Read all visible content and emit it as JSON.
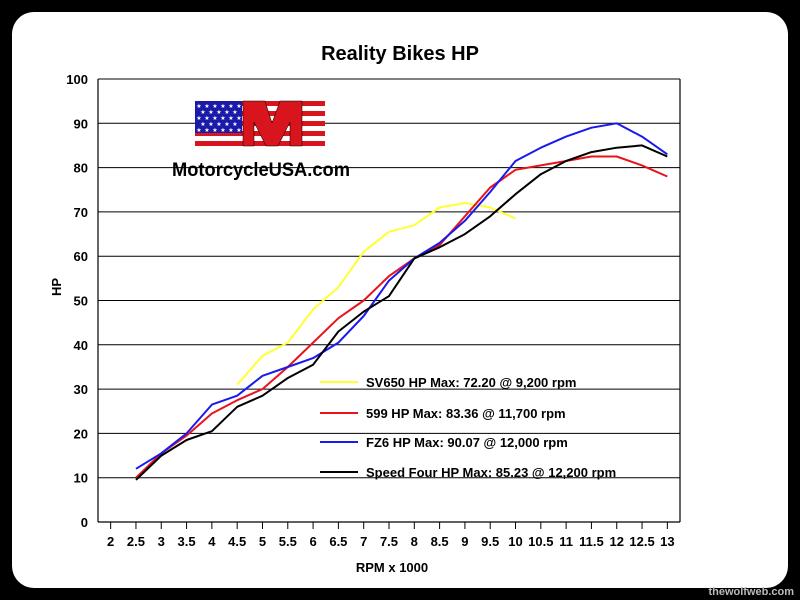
{
  "chart_data": {
    "type": "line",
    "title": "Reality Bikes HP",
    "xlabel": "RPM x 1000",
    "ylabel": "HP",
    "xlim": [
      2,
      13
    ],
    "ylim": [
      0,
      100
    ],
    "x_ticks": [
      "2",
      "2.5",
      "3",
      "3.5",
      "4",
      "4.5",
      "5",
      "5.5",
      "6",
      "6.5",
      "7",
      "7.5",
      "8",
      "8.5",
      "9",
      "9.5",
      "10",
      "10.5",
      "11",
      "11.5",
      "12",
      "12.5",
      "13"
    ],
    "y_ticks": [
      "0",
      "10",
      "20",
      "30",
      "40",
      "50",
      "60",
      "70",
      "80",
      "90",
      "100"
    ],
    "grid": true,
    "series": [
      {
        "name": "SV650 HP Max: 72.20 @ 9,200 rpm",
        "color": "#ffff33",
        "x": [
          4.5,
          5,
          5.5,
          6,
          6.5,
          7,
          7.5,
          8,
          8.5,
          9,
          9.5,
          10
        ],
        "y": [
          31,
          37.5,
          40.5,
          48,
          53,
          61,
          65.5,
          67,
          71,
          72,
          71,
          68.5
        ]
      },
      {
        "name": "599 HP Max: 83.36 @ 11,700 rpm",
        "color": "#e8141b",
        "x": [
          2.5,
          3,
          3.5,
          4,
          4.5,
          5,
          5.5,
          6,
          6.5,
          7,
          7.5,
          8,
          8.5,
          9,
          9.5,
          10,
          10.5,
          11,
          11.5,
          12,
          12.5,
          13
        ],
        "y": [
          10,
          15.5,
          19.5,
          24.5,
          27.5,
          30,
          35,
          40.5,
          46,
          50,
          55.5,
          59.5,
          62.5,
          69,
          75.5,
          79.5,
          80.5,
          81.5,
          82.5,
          82.5,
          80.5,
          78
        ]
      },
      {
        "name": "FZ6 HP Max: 90.07 @ 12,000 rpm",
        "color": "#1a1aee",
        "x": [
          2.5,
          3,
          3.5,
          4,
          4.5,
          5,
          5.5,
          6,
          6.5,
          7,
          7.5,
          8,
          8.5,
          9,
          9.5,
          10,
          10.5,
          11,
          11.5,
          12,
          12.5,
          13
        ],
        "y": [
          12,
          15.5,
          20,
          26.5,
          28.5,
          33,
          35,
          37,
          40.5,
          46.5,
          54.5,
          59.5,
          63,
          68,
          74.5,
          81.5,
          84.5,
          87,
          89,
          90,
          87,
          83
        ]
      },
      {
        "name": "Speed Four HP Max: 85.23 @ 12,200 rpm",
        "color": "#000000",
        "x": [
          2.5,
          3,
          3.5,
          4,
          4.5,
          5,
          5.5,
          6,
          6.5,
          7,
          7.5,
          8,
          8.5,
          9,
          9.5,
          10,
          10.5,
          11,
          11.5,
          12,
          12.5,
          13
        ],
        "y": [
          9.5,
          15,
          18.5,
          20.5,
          26,
          28.5,
          32.5,
          35.5,
          43,
          47.5,
          51,
          59.5,
          62,
          65,
          69,
          74,
          78.5,
          81.5,
          83.5,
          84.5,
          85,
          82.5
        ]
      }
    ],
    "legend_position": "bottom-right"
  },
  "logo": {
    "brand": "MotorcycleUSA.com",
    "letter": "M",
    "colors": {
      "red": "#d8141c",
      "blue": "#1a1aa8",
      "white": "#ffffff"
    }
  },
  "watermark": "thewolfweb.com"
}
